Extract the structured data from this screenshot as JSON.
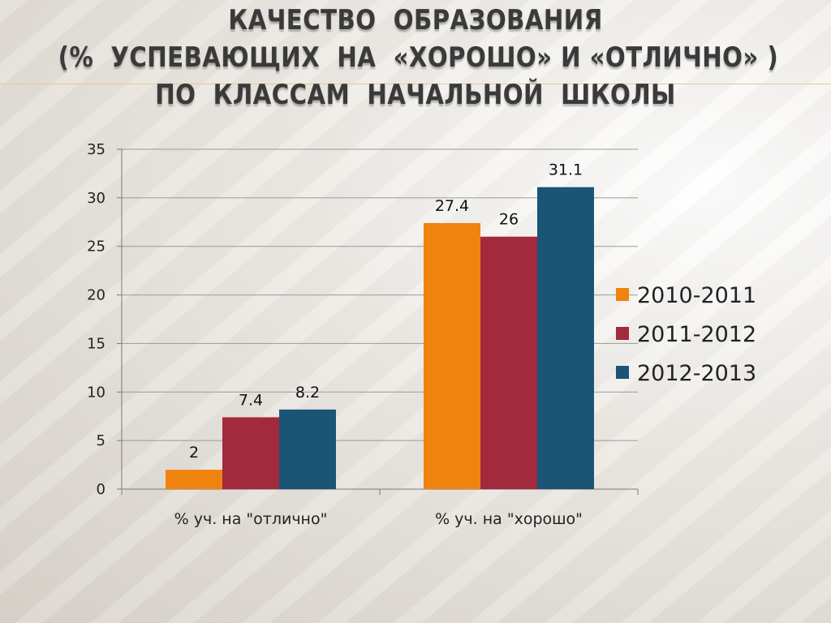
{
  "slide": {
    "title_lines": [
      "КАЧЕСТВО  ОБРАЗОВАНИЯ",
      "(%  УСПЕВАЮЩИХ  НА  «ХОРОШО» И «ОТЛИЧНО» )",
      "ПО  КЛАССАМ  НАЧАЛЬНОЙ  ШКОЛЫ"
    ]
  },
  "chart_data": {
    "type": "bar",
    "title": "",
    "xlabel": "",
    "ylabel": "",
    "categories": [
      "% уч. на \"отлично\"",
      "% уч. на \"хорошо\""
    ],
    "series": [
      {
        "name": "2010-2011",
        "values": [
          2,
          27.4
        ],
        "color": "#f0830e"
      },
      {
        "name": "2011-2012",
        "values": [
          7.4,
          26
        ],
        "color": "#a3293c"
      },
      {
        "name": "2012-2013",
        "values": [
          8.2,
          31.1
        ],
        "color": "#1a5576"
      }
    ],
    "ylim": [
      0,
      35
    ],
    "yticks": [
      0,
      5,
      10,
      15,
      20,
      25,
      30,
      35
    ],
    "grid": true,
    "legend": "right",
    "data_labels": true
  }
}
